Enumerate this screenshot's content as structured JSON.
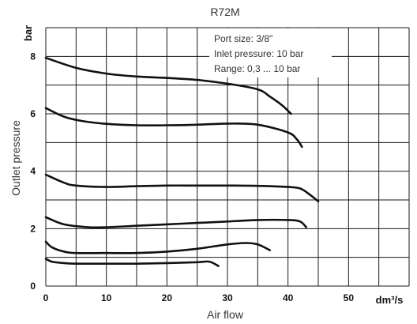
{
  "chart_data": {
    "type": "line",
    "title": "R72M",
    "xlabel": "Air flow",
    "ylabel": "Outlet pressure",
    "x_unit": "dm³/s",
    "y_unit": "bar",
    "xlim": [
      0,
      60
    ],
    "ylim": [
      0,
      9
    ],
    "x_ticks": [
      0,
      10,
      20,
      30,
      40,
      50
    ],
    "y_ticks": [
      0,
      2,
      4,
      6,
      8
    ],
    "grid": true,
    "annotations": [
      "Port size: 3/8\"",
      "Inlet pressure: 10 bar",
      "Range: 0,3 ... 10 bar"
    ],
    "series": [
      {
        "x": [
          0,
          5,
          10,
          15,
          20,
          25,
          30,
          35,
          37,
          39,
          40.5
        ],
        "values": [
          7.95,
          7.6,
          7.4,
          7.3,
          7.25,
          7.18,
          7.05,
          6.85,
          6.6,
          6.3,
          6.0
        ]
      },
      {
        "x": [
          0,
          3,
          6,
          10,
          15,
          20,
          25,
          30,
          35,
          40,
          41.5,
          42.3
        ],
        "values": [
          6.2,
          5.9,
          5.75,
          5.65,
          5.6,
          5.6,
          5.62,
          5.66,
          5.62,
          5.35,
          5.1,
          4.85
        ]
      },
      {
        "x": [
          0,
          3,
          5,
          10,
          15,
          20,
          25,
          30,
          35,
          40,
          42,
          43.5,
          45
        ],
        "values": [
          3.88,
          3.6,
          3.5,
          3.45,
          3.48,
          3.5,
          3.5,
          3.5,
          3.49,
          3.45,
          3.4,
          3.2,
          2.95
        ]
      },
      {
        "x": [
          0,
          3,
          7,
          10,
          15,
          20,
          25,
          30,
          35,
          40,
          42,
          43
        ],
        "values": [
          2.4,
          2.15,
          2.05,
          2.05,
          2.1,
          2.15,
          2.2,
          2.25,
          2.3,
          2.3,
          2.25,
          2.05
        ]
      },
      {
        "x": [
          0,
          1,
          3,
          5,
          10,
          15,
          20,
          25,
          30,
          33,
          35,
          37
        ],
        "values": [
          1.55,
          1.35,
          1.2,
          1.15,
          1.15,
          1.15,
          1.2,
          1.3,
          1.45,
          1.5,
          1.45,
          1.25
        ]
      },
      {
        "x": [
          0,
          1,
          3,
          5,
          10,
          15,
          20,
          25,
          27,
          28.5
        ],
        "values": [
          0.95,
          0.85,
          0.8,
          0.78,
          0.78,
          0.78,
          0.8,
          0.83,
          0.85,
          0.7
        ]
      }
    ]
  }
}
